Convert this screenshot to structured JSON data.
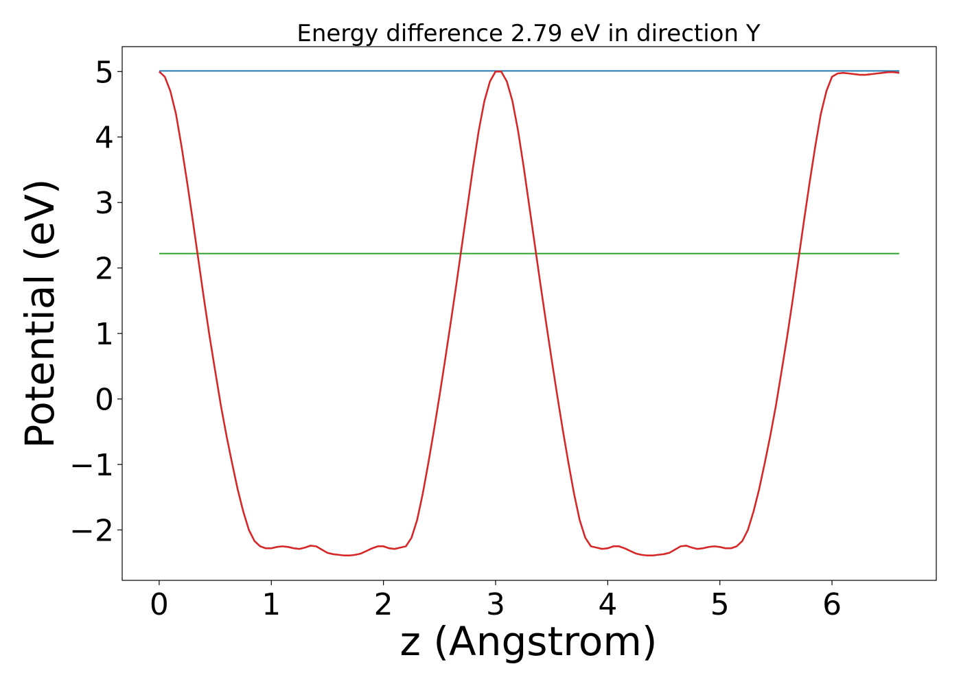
{
  "chart_data": {
    "type": "line",
    "title": "Energy difference 2.79 eV in direction Y",
    "xlabel": "z (Angstrom)",
    "ylabel": "Potential (eV)",
    "xlim": [
      -0.33,
      6.93
    ],
    "ylim": [
      -2.77,
      5.38
    ],
    "xticks": [
      0,
      1,
      2,
      3,
      4,
      5,
      6
    ],
    "xtick_labels": [
      "0",
      "1",
      "2",
      "3",
      "4",
      "5",
      "6"
    ],
    "yticks": [
      -2,
      -1,
      0,
      1,
      2,
      3,
      4,
      5
    ],
    "ytick_labels": [
      "−2",
      "−1",
      "0",
      "1",
      "2",
      "3",
      "4",
      "5"
    ],
    "grid": false,
    "series": [
      {
        "color": "#1f77b4",
        "x": [
          0,
          6.6
        ],
        "y": [
          5.01,
          5.01
        ]
      },
      {
        "color": "#2ca02c",
        "x": [
          0,
          6.6
        ],
        "y": [
          2.22,
          2.22
        ]
      },
      {
        "color": "#d62728",
        "x": [
          0,
          0.05,
          0.1,
          0.15,
          0.2,
          0.25,
          0.3,
          0.35,
          0.4,
          0.45,
          0.5,
          0.55,
          0.6,
          0.65,
          0.7,
          0.75,
          0.8,
          0.85,
          0.9,
          0.95,
          1.0,
          1.05,
          1.1,
          1.15,
          1.2,
          1.25,
          1.3,
          1.35,
          1.4,
          1.45,
          1.5,
          1.55,
          1.6,
          1.65,
          1.7,
          1.75,
          1.8,
          1.85,
          1.9,
          1.95,
          2.0,
          2.05,
          2.1,
          2.15,
          2.2,
          2.25,
          2.3,
          2.35,
          2.4,
          2.45,
          2.5,
          2.55,
          2.6,
          2.65,
          2.7,
          2.75,
          2.8,
          2.85,
          2.9,
          2.95,
          3.0,
          3.05,
          3.1,
          3.15,
          3.2,
          3.25,
          3.3,
          3.35,
          3.4,
          3.45,
          3.5,
          3.55,
          3.6,
          3.65,
          3.7,
          3.75,
          3.8,
          3.85,
          3.9,
          3.95,
          4.0,
          4.05,
          4.1,
          4.15,
          4.2,
          4.25,
          4.3,
          4.35,
          4.4,
          4.45,
          4.5,
          4.55,
          4.6,
          4.65,
          4.7,
          4.75,
          4.8,
          4.85,
          4.9,
          4.95,
          5.0,
          5.05,
          5.1,
          5.15,
          5.2,
          5.25,
          5.3,
          5.35,
          5.4,
          5.45,
          5.5,
          5.55,
          5.6,
          5.65,
          5.7,
          5.75,
          5.8,
          5.85,
          5.9,
          5.95,
          6.0,
          6.05,
          6.1,
          6.15,
          6.2,
          6.25,
          6.3,
          6.35,
          6.4,
          6.45,
          6.5,
          6.55,
          6.6
        ],
        "y": [
          5.0,
          4.92,
          4.7,
          4.35,
          3.85,
          3.3,
          2.72,
          2.12,
          1.52,
          0.95,
          0.42,
          -0.1,
          -0.56,
          -0.98,
          -1.38,
          -1.72,
          -2.0,
          -2.17,
          -2.25,
          -2.28,
          -2.28,
          -2.26,
          -2.25,
          -2.26,
          -2.28,
          -2.29,
          -2.27,
          -2.24,
          -2.25,
          -2.3,
          -2.35,
          -2.37,
          -2.38,
          -2.39,
          -2.39,
          -2.38,
          -2.36,
          -2.32,
          -2.28,
          -2.25,
          -2.25,
          -2.28,
          -2.29,
          -2.27,
          -2.25,
          -2.12,
          -1.85,
          -1.45,
          -0.98,
          -0.48,
          0.05,
          0.6,
          1.17,
          1.75,
          2.35,
          2.95,
          3.55,
          4.1,
          4.55,
          4.85,
          5.0,
          5.0,
          4.85,
          4.55,
          4.1,
          3.55,
          2.95,
          2.35,
          1.75,
          1.17,
          0.6,
          0.05,
          -0.48,
          -0.98,
          -1.45,
          -1.85,
          -2.12,
          -2.25,
          -2.27,
          -2.29,
          -2.28,
          -2.25,
          -2.25,
          -2.28,
          -2.32,
          -2.36,
          -2.38,
          -2.39,
          -2.39,
          -2.38,
          -2.37,
          -2.35,
          -2.3,
          -2.25,
          -2.24,
          -2.27,
          -2.29,
          -2.28,
          -2.26,
          -2.25,
          -2.26,
          -2.28,
          -2.28,
          -2.25,
          -2.17,
          -2.0,
          -1.72,
          -1.38,
          -0.98,
          -0.56,
          -0.1,
          0.42,
          0.95,
          1.52,
          2.12,
          2.72,
          3.3,
          3.85,
          4.35,
          4.7,
          4.92,
          4.97,
          4.98,
          4.97,
          4.96,
          4.95,
          4.95,
          4.96,
          4.97,
          4.98,
          4.99,
          4.99,
          4.98
        ]
      }
    ]
  }
}
